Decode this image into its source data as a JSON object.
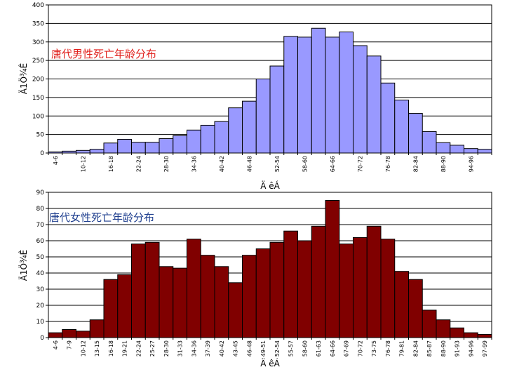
{
  "chart_data": [
    {
      "type": "bar",
      "title": "唐代男性死亡年龄分布",
      "title_color": "#e0201c",
      "bar_color": "#9999ff",
      "ylabel": "Ä1Ö¾Ê",
      "xlabel": "Ä êÁ",
      "ylim": [
        0,
        400
      ],
      "yticks": [
        0,
        50,
        100,
        150,
        200,
        250,
        300,
        350,
        400
      ],
      "grid": true,
      "categories": [
        "4-6",
        "7-9",
        "10-12",
        "13-15",
        "16-18",
        "19-21",
        "22-24",
        "25-27",
        "28-30",
        "31-33",
        "34-36",
        "37-39",
        "40-42",
        "43-45",
        "46-48",
        "49-51",
        "52-54",
        "55-57",
        "58-60",
        "61-63",
        "64-66",
        "67-69",
        "70-72",
        "73-75",
        "76-78",
        "79-81",
        "82-84",
        "85-87",
        "88-90",
        "91-93",
        "94-96",
        "97-99"
      ],
      "xtick_labels": [
        "4-6",
        "",
        "10-12",
        "",
        "16-18",
        "",
        "22-24",
        "",
        "28-30",
        "",
        "34-36",
        "",
        "40-42",
        "",
        "46-48",
        "",
        "52-54",
        "",
        "58-60",
        "",
        "64-66",
        "",
        "70-72",
        "",
        "76-78",
        "",
        "82-84",
        "",
        "88-90",
        "",
        "94-96",
        ""
      ],
      "values": [
        3,
        5,
        7,
        10,
        27,
        37,
        29,
        29,
        39,
        47,
        62,
        75,
        85,
        122,
        140,
        200,
        235,
        315,
        313,
        337,
        313,
        327,
        290,
        262,
        189,
        143,
        107,
        58,
        28,
        21,
        12,
        10
      ]
    },
    {
      "type": "bar",
      "title": "唐代女性死亡年龄分布",
      "title_color": "#1f3f8f",
      "bar_color": "#800000",
      "ylabel": "Ä1Ö¾Ê",
      "xlabel": "Ä êÁ",
      "ylim": [
        0,
        90
      ],
      "yticks": [
        0,
        10,
        20,
        30,
        40,
        50,
        60,
        70,
        80,
        90
      ],
      "grid": true,
      "categories": [
        "4-6",
        "7-9",
        "10-12",
        "13-15",
        "16-18",
        "19-21",
        "22-24",
        "25-27",
        "28-30",
        "31-33",
        "34-36",
        "37-39",
        "40-42",
        "43-45",
        "46-48",
        "49-51",
        "52-54",
        "55-57",
        "58-60",
        "61-63",
        "64-66",
        "67-69",
        "70-72",
        "73-75",
        "76-78",
        "79-81",
        "82-84",
        "85-87",
        "88-90",
        "91-93",
        "94-96",
        "97-99"
      ],
      "xtick_labels": [
        "4-6",
        "7-9",
        "10-12",
        "13-15",
        "16-18",
        "19-21",
        "22-24",
        "25-27",
        "28-30",
        "31-33",
        "34-36",
        "37-39",
        "40-42",
        "43-45",
        "46-48",
        "49-51",
        "52-54",
        "55-57",
        "58-60",
        "61-63",
        "64-66",
        "67-69",
        "70-72",
        "73-75",
        "76-78",
        "79-81",
        "82-84",
        "85-87",
        "88-90",
        "91-93",
        "94-96",
        "97-99"
      ],
      "values": [
        3,
        5,
        4,
        11,
        36,
        39,
        58,
        59,
        44,
        43,
        61,
        51,
        44,
        34,
        51,
        55,
        59,
        66,
        60,
        69,
        85,
        58,
        62,
        69,
        61,
        41,
        36,
        17,
        11,
        6,
        3,
        2
      ]
    }
  ]
}
